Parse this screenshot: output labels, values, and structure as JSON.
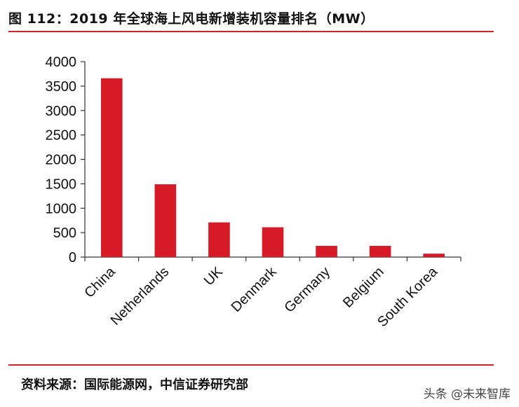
{
  "figure": {
    "title": "图 112：2019 年全球海上风电新增装机容量排名（MW）",
    "source": "资料来源：国际能源网，中信证券研究部",
    "watermark": "头条 @未来智库",
    "rule_color": "#d0202a"
  },
  "chart_data": {
    "type": "bar",
    "categories": [
      "China",
      "Netherlands",
      "UK",
      "Denmark",
      "Germany",
      "Belgium",
      "South Korea"
    ],
    "values": [
      3660,
      1490,
      710,
      610,
      230,
      230,
      70
    ],
    "ylim": [
      0,
      4000
    ],
    "yticks": [
      0,
      500,
      1000,
      1500,
      2000,
      2500,
      3000,
      3500,
      4000
    ],
    "bar_color": "#d61a26",
    "grid": false,
    "legend": "none"
  }
}
